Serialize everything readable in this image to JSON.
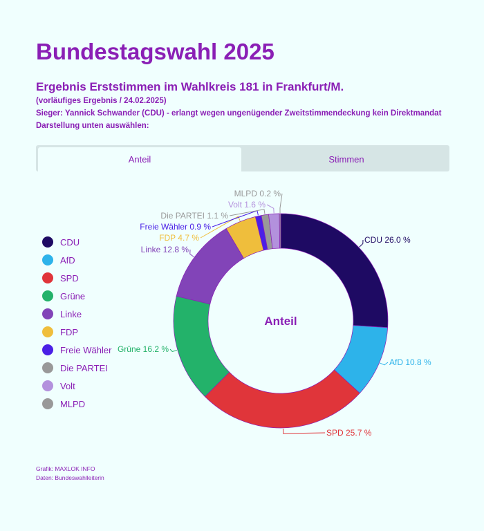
{
  "header": {
    "title": "Bundestagswahl 2025",
    "subtitle": "Ergebnis Erststimmen im Wahlkreis 181 in Frankfurt/M.",
    "note": "(vorläufiges Ergebnis / 24.02.2025)",
    "winner": "Sieger: Yannick Schwander (CDU)  - erlangt wegen ungenügender Zweitstimmendeckung kein Direktmandat",
    "prompt": "Darstellung unten auswählen:"
  },
  "tabs": [
    {
      "label": "Anteil",
      "active": true
    },
    {
      "label": "Stimmen",
      "active": false
    }
  ],
  "chart_data": {
    "type": "pie",
    "variant": "donut",
    "center_label": "Anteil",
    "unit": "%",
    "legend_position": "left",
    "categories": [
      "CDU",
      "AfD",
      "SPD",
      "Grüne",
      "Linke",
      "FDP",
      "Freie Wähler",
      "Die PARTEI",
      "Volt",
      "MLPD"
    ],
    "values": [
      26.0,
      10.8,
      25.7,
      16.2,
      12.8,
      4.7,
      0.9,
      1.1,
      1.6,
      0.2
    ],
    "labels": [
      "CDU 26.0 %",
      "AfD 10.8 %",
      "SPD 25.7 %",
      "Grüne 16.2 %",
      "Linke 12.8 %",
      "FDP 4.7 %",
      "Freie Wähler 0.9 %",
      "Die PARTEI 1.1 %",
      "Volt 1.6 %",
      "MLPD 0.2 %"
    ],
    "colors": [
      "#1e0a63",
      "#2db3ea",
      "#e0353a",
      "#23b26a",
      "#8244b8",
      "#efbe3c",
      "#4a20e6",
      "#999999",
      "#b391dd",
      "#999999"
    ]
  },
  "footer": {
    "credit": "Grafik: MAXLOK INFO",
    "source": "Daten: Bundeswahlleiterin"
  }
}
